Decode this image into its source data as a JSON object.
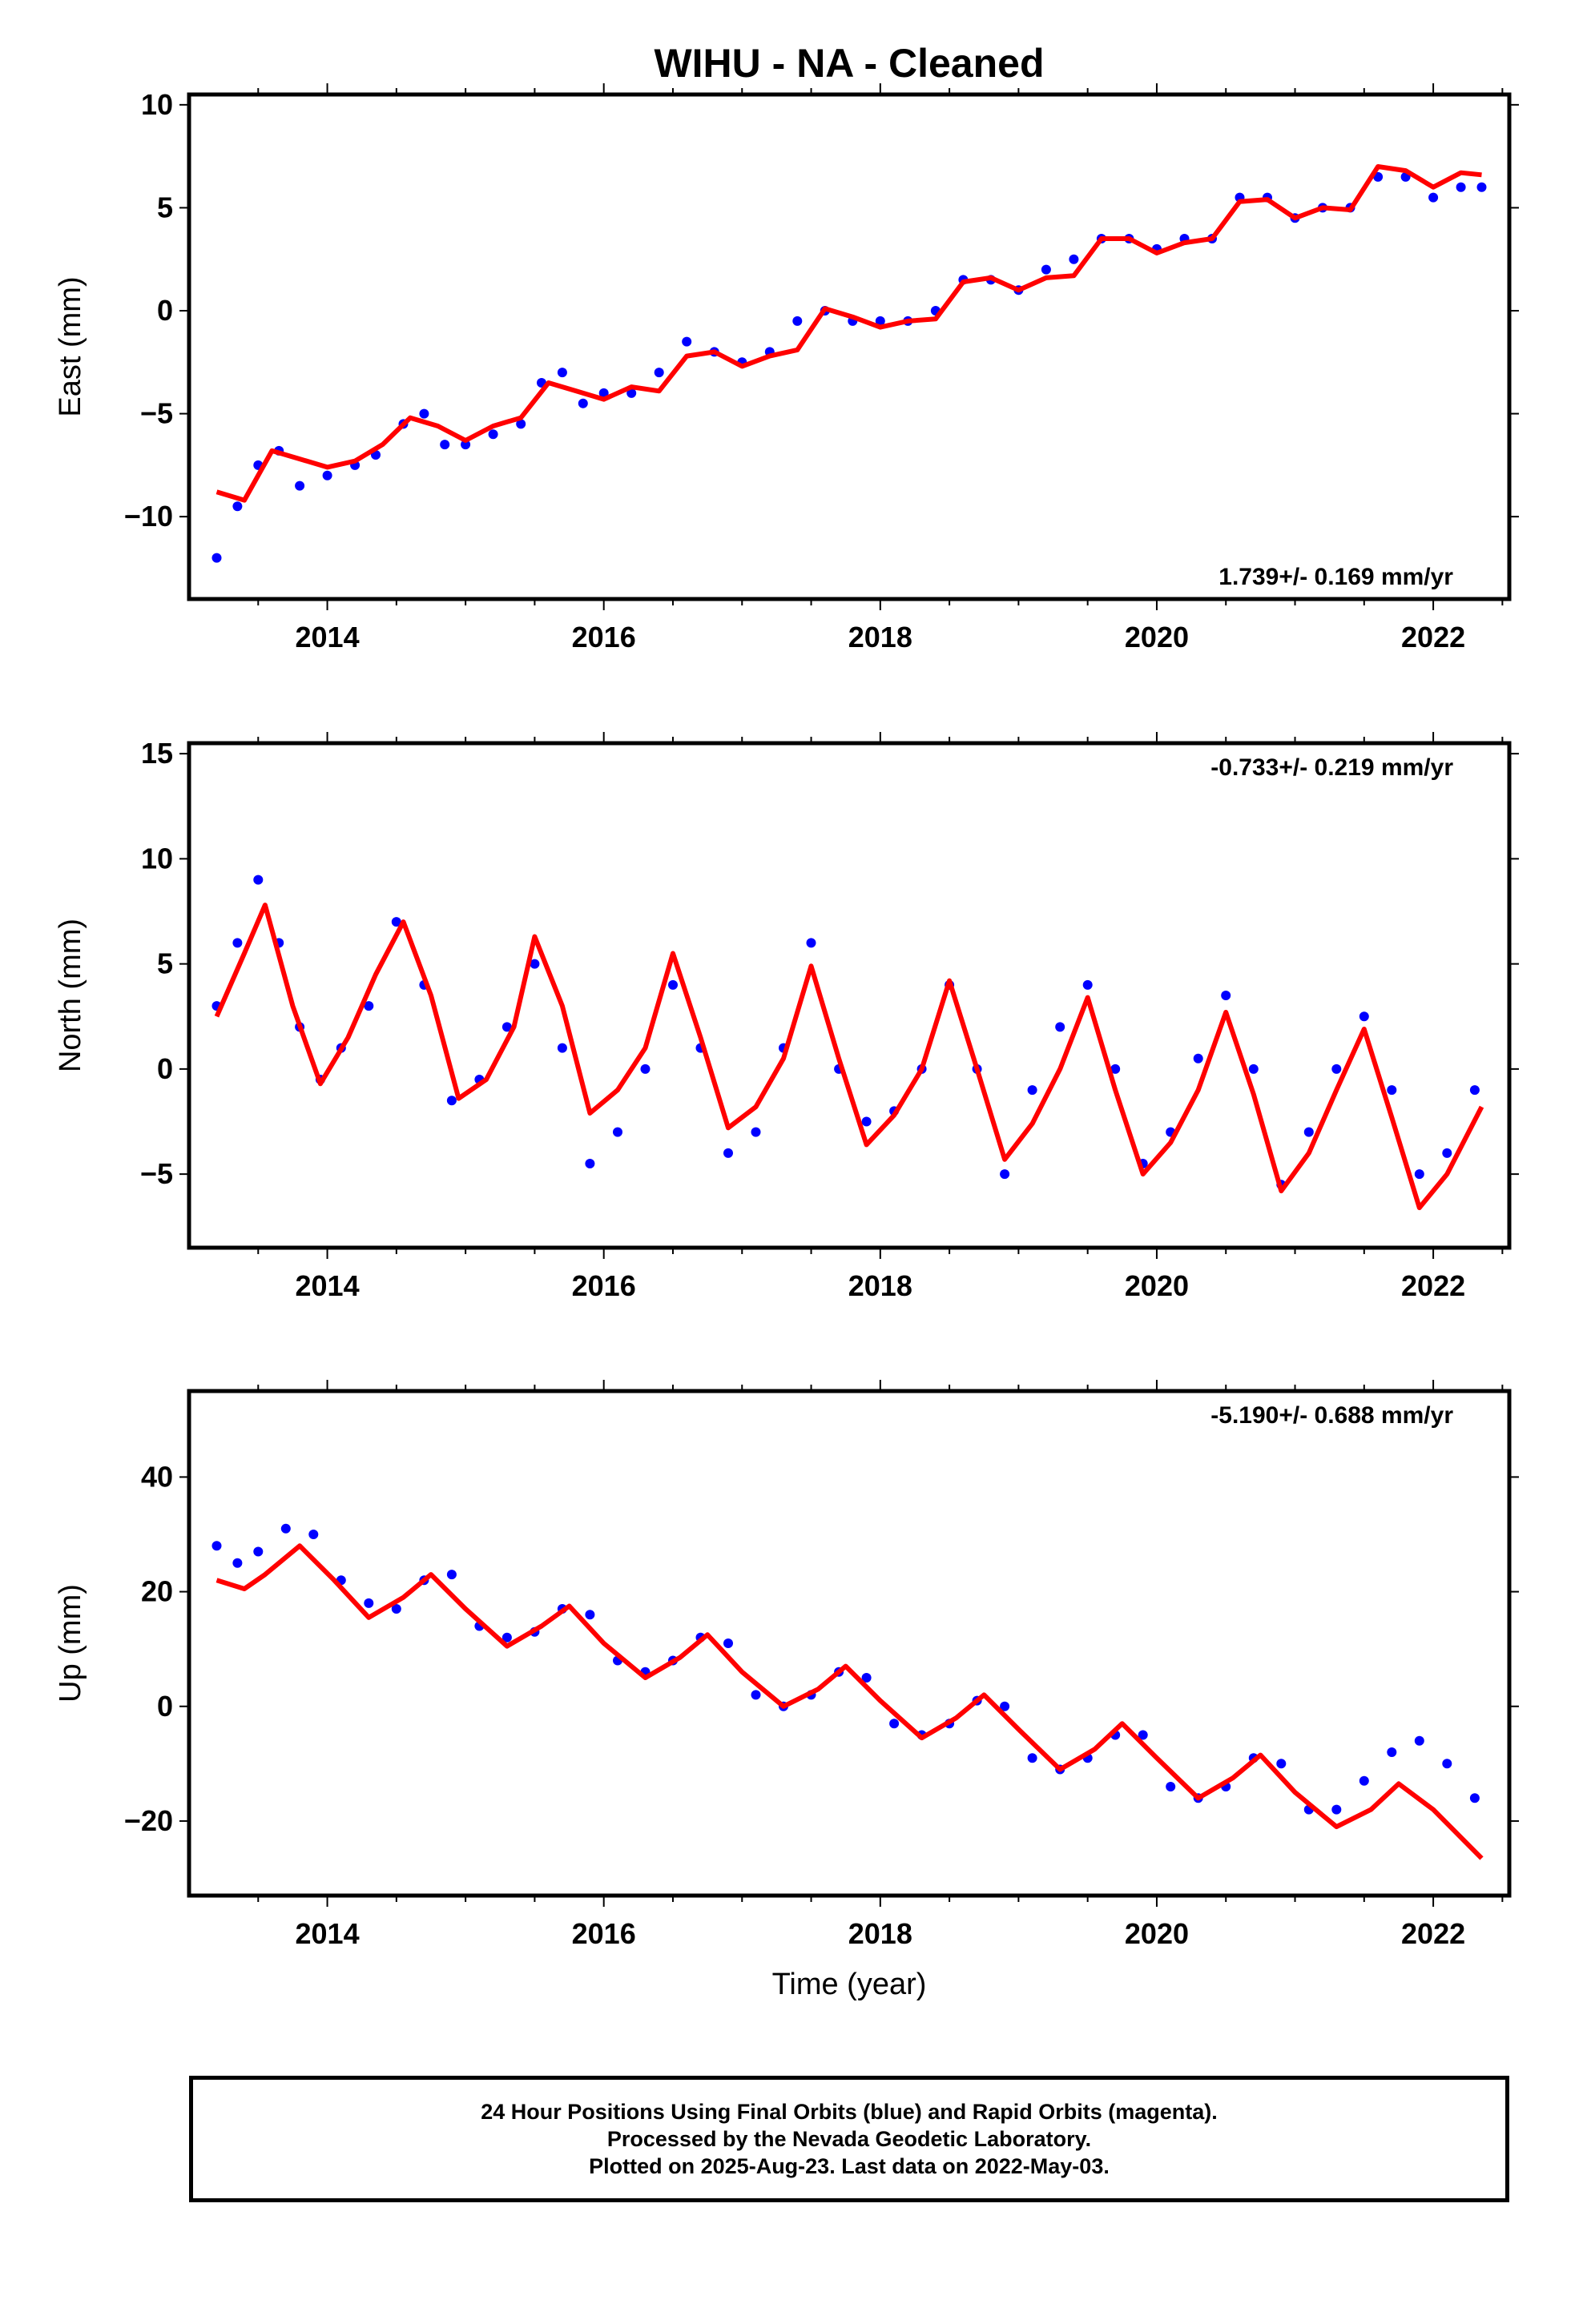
{
  "figure": {
    "title": "WIHU  - NA - Cleaned",
    "xlabel": "Time (year)"
  },
  "caption": {
    "line1": "24 Hour Positions Using Final Orbits (blue) and Rapid Orbits (magenta).",
    "line2": "Processed by the Nevada Geodetic Laboratory.",
    "line3": "Plotted on 2025-Aug-23. Last data on 2022-May-03."
  },
  "colors": {
    "points": "#0000ff",
    "fit": "#ff0000",
    "frame": "#000000"
  },
  "chart_data": [
    {
      "type": "scatter",
      "component": "East",
      "ylabel": "East (mm)",
      "rate_label": "1.739+/- 0.169 mm/yr",
      "rate_position": "bottom-right",
      "xlim": [
        2013.0,
        2022.55
      ],
      "ylim": [
        -14,
        10.5
      ],
      "xticks": [
        2014,
        2016,
        2018,
        2020,
        2022
      ],
      "yticks": [
        -10,
        -5,
        0,
        5,
        10
      ],
      "grid": false,
      "series": [
        {
          "role": "points",
          "x": [
            2013.2,
            2013.35,
            2013.5,
            2013.65,
            2013.8,
            2014.0,
            2014.2,
            2014.35,
            2014.55,
            2014.7,
            2014.85,
            2015.0,
            2015.2,
            2015.4,
            2015.55,
            2015.7,
            2015.85,
            2016.0,
            2016.2,
            2016.4,
            2016.6,
            2016.8,
            2017.0,
            2017.2,
            2017.4,
            2017.6,
            2017.8,
            2018.0,
            2018.2,
            2018.4,
            2018.6,
            2018.8,
            2019.0,
            2019.2,
            2019.4,
            2019.6,
            2019.8,
            2020.0,
            2020.2,
            2020.4,
            2020.6,
            2020.8,
            2021.0,
            2021.2,
            2021.4,
            2021.6,
            2021.8,
            2022.0,
            2022.2,
            2022.35
          ],
          "y": [
            -12,
            -9.5,
            -7.5,
            -6.8,
            -8.5,
            -8,
            -7.5,
            -7,
            -5.5,
            -5,
            -6.5,
            -6.5,
            -6,
            -5.5,
            -3.5,
            -3,
            -4.5,
            -4,
            -4,
            -3,
            -1.5,
            -2,
            -2.5,
            -2,
            -0.5,
            0,
            -0.5,
            -0.5,
            -0.5,
            0,
            1.5,
            1.5,
            1,
            2,
            2.5,
            3.5,
            3.5,
            3,
            3.5,
            3.5,
            5.5,
            5.5,
            4.5,
            5,
            5,
            6.5,
            6.5,
            5.5,
            6,
            6
          ]
        },
        {
          "role": "fit",
          "x": [
            2013.2,
            2013.4,
            2013.6,
            2013.8,
            2014.0,
            2014.2,
            2014.4,
            2014.6,
            2014.8,
            2015.0,
            2015.2,
            2015.4,
            2015.6,
            2015.8,
            2016.0,
            2016.2,
            2016.4,
            2016.6,
            2016.8,
            2017.0,
            2017.2,
            2017.4,
            2017.6,
            2017.8,
            2018.0,
            2018.2,
            2018.4,
            2018.6,
            2018.8,
            2019.0,
            2019.2,
            2019.4,
            2019.6,
            2019.8,
            2020.0,
            2020.2,
            2020.4,
            2020.6,
            2020.8,
            2021.0,
            2021.2,
            2021.4,
            2021.6,
            2021.8,
            2022.0,
            2022.2,
            2022.35
          ],
          "y": [
            -8.8,
            -9.2,
            -6.8,
            -7.2,
            -7.6,
            -7.3,
            -6.5,
            -5.2,
            -5.6,
            -6.3,
            -5.6,
            -5.2,
            -3.5,
            -3.9,
            -4.3,
            -3.7,
            -3.9,
            -2.2,
            -2.0,
            -2.7,
            -2.2,
            -1.9,
            0.1,
            -0.3,
            -0.8,
            -0.5,
            -0.4,
            1.4,
            1.6,
            1.0,
            1.6,
            1.7,
            3.5,
            3.5,
            2.8,
            3.3,
            3.5,
            5.3,
            5.4,
            4.5,
            5.0,
            4.9,
            7.0,
            6.8,
            6.0,
            6.7,
            6.6
          ]
        }
      ]
    },
    {
      "type": "scatter",
      "component": "North",
      "ylabel": "North (mm)",
      "rate_label": "-0.733+/- 0.219 mm/yr",
      "rate_position": "top-right",
      "xlim": [
        2013.0,
        2022.55
      ],
      "ylim": [
        -8.5,
        15.5
      ],
      "xticks": [
        2014,
        2016,
        2018,
        2020,
        2022
      ],
      "yticks": [
        -5,
        0,
        5,
        10,
        15
      ],
      "grid": false,
      "series": [
        {
          "role": "points",
          "x": [
            2013.2,
            2013.35,
            2013.5,
            2013.65,
            2013.8,
            2013.95,
            2014.1,
            2014.3,
            2014.5,
            2014.7,
            2014.9,
            2015.1,
            2015.3,
            2015.5,
            2015.7,
            2015.9,
            2016.1,
            2016.3,
            2016.5,
            2016.7,
            2016.9,
            2017.1,
            2017.3,
            2017.5,
            2017.7,
            2017.9,
            2018.1,
            2018.3,
            2018.5,
            2018.7,
            2018.9,
            2019.1,
            2019.3,
            2019.5,
            2019.7,
            2019.9,
            2020.1,
            2020.3,
            2020.5,
            2020.7,
            2020.9,
            2021.1,
            2021.3,
            2021.5,
            2021.7,
            2021.9,
            2022.1,
            2022.3
          ],
          "y": [
            3,
            6,
            9,
            6,
            2,
            -0.5,
            1,
            3,
            7,
            4,
            -1.5,
            -0.5,
            2,
            5,
            1,
            -4.5,
            -3,
            0,
            4,
            1,
            -4,
            -3,
            1,
            6,
            0,
            -2.5,
            -2,
            0,
            4,
            0,
            -5,
            -1,
            2,
            4,
            0,
            -4.5,
            -3,
            0.5,
            3.5,
            0,
            -5.5,
            -3,
            0,
            2.5,
            -1,
            -5,
            -4,
            -1
          ]
        },
        {
          "role": "fit",
          "x": [
            2013.2,
            2013.4,
            2013.55,
            2013.75,
            2013.95,
            2014.15,
            2014.35,
            2014.55,
            2014.75,
            2014.95,
            2015.15,
            2015.35,
            2015.5,
            2015.7,
            2015.9,
            2016.1,
            2016.3,
            2016.5,
            2016.7,
            2016.9,
            2017.1,
            2017.3,
            2017.5,
            2017.7,
            2017.9,
            2018.1,
            2018.3,
            2018.5,
            2018.7,
            2018.9,
            2019.1,
            2019.3,
            2019.5,
            2019.7,
            2019.9,
            2020.1,
            2020.3,
            2020.5,
            2020.7,
            2020.9,
            2021.1,
            2021.3,
            2021.5,
            2021.7,
            2021.9,
            2022.1,
            2022.35
          ],
          "y": [
            2.5,
            5.5,
            7.8,
            3.0,
            -0.7,
            1.5,
            4.5,
            7.0,
            3.5,
            -1.4,
            -0.5,
            2.0,
            6.3,
            3.0,
            -2.1,
            -1.0,
            1.0,
            5.5,
            1.5,
            -2.8,
            -1.8,
            0.5,
            4.9,
            0.5,
            -3.6,
            -2.2,
            0.0,
            4.2,
            0.0,
            -4.3,
            -2.6,
            0.0,
            3.4,
            -1.0,
            -5.0,
            -3.5,
            -1.0,
            2.7,
            -1.2,
            -5.8,
            -4.0,
            -1.0,
            1.9,
            -2.3,
            -6.6,
            -5.0,
            -1.8
          ]
        }
      ]
    },
    {
      "type": "scatter",
      "component": "Up",
      "ylabel": "Up (mm)",
      "rate_label": "-5.190+/- 0.688 mm/yr",
      "rate_position": "top-right",
      "xlim": [
        2013.0,
        2022.55
      ],
      "ylim": [
        -33,
        55
      ],
      "xticks": [
        2014,
        2016,
        2018,
        2020,
        2022
      ],
      "yticks": [
        -20,
        0,
        20,
        40
      ],
      "grid": false,
      "series": [
        {
          "role": "points",
          "x": [
            2013.2,
            2013.35,
            2013.5,
            2013.7,
            2013.9,
            2014.1,
            2014.3,
            2014.5,
            2014.7,
            2014.9,
            2015.1,
            2015.3,
            2015.5,
            2015.7,
            2015.9,
            2016.1,
            2016.3,
            2016.5,
            2016.7,
            2016.9,
            2017.1,
            2017.3,
            2017.5,
            2017.7,
            2017.9,
            2018.1,
            2018.3,
            2018.5,
            2018.7,
            2018.9,
            2019.1,
            2019.3,
            2019.5,
            2019.7,
            2019.9,
            2020.1,
            2020.3,
            2020.5,
            2020.7,
            2020.9,
            2021.1,
            2021.3,
            2021.5,
            2021.7,
            2021.9,
            2022.1,
            2022.3
          ],
          "y": [
            28,
            25,
            27,
            31,
            30,
            22,
            18,
            17,
            22,
            23,
            14,
            12,
            13,
            17,
            16,
            8,
            6,
            8,
            12,
            11,
            2,
            0,
            2,
            6,
            5,
            -3,
            -5,
            -3,
            1,
            0,
            -9,
            -11,
            -9,
            -5,
            -5,
            -14,
            -16,
            -14,
            -9,
            -10,
            -18,
            -18,
            -13,
            -8,
            -6,
            -10,
            -16
          ]
        },
        {
          "role": "fit",
          "x": [
            2013.2,
            2013.4,
            2013.55,
            2013.8,
            2014.05,
            2014.3,
            2014.55,
            2014.75,
            2015.0,
            2015.3,
            2015.55,
            2015.75,
            2016.0,
            2016.3,
            2016.55,
            2016.75,
            2017.0,
            2017.3,
            2017.55,
            2017.75,
            2018.0,
            2018.3,
            2018.55,
            2018.75,
            2019.0,
            2019.3,
            2019.55,
            2019.75,
            2020.0,
            2020.3,
            2020.55,
            2020.75,
            2021.0,
            2021.3,
            2021.55,
            2021.75,
            2022.0,
            2022.35
          ],
          "y": [
            22,
            20.5,
            23,
            28,
            22,
            15.5,
            19,
            23,
            17,
            10.5,
            14,
            17.5,
            11,
            5,
            8.5,
            12.5,
            6,
            0,
            3,
            7,
            1,
            -5.5,
            -2,
            2,
            -4,
            -11,
            -7.5,
            -3,
            -9,
            -16,
            -12.5,
            -8.5,
            -15,
            -21,
            -18,
            -13.5,
            -18,
            -26.5
          ]
        }
      ]
    }
  ]
}
